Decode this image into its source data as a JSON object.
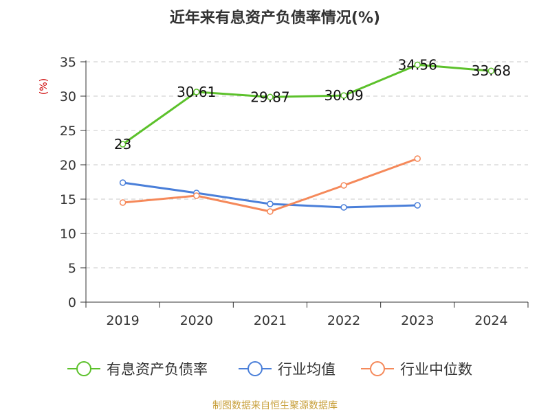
{
  "chart_data": {
    "type": "line",
    "title": "近年来有息资产负债率情况(%)",
    "ylabel": "(%)",
    "xlabel": "",
    "categories": [
      "2019",
      "2020",
      "2021",
      "2022",
      "2023",
      "2024"
    ],
    "ylim": [
      0,
      35
    ],
    "yticks": [
      0,
      5,
      10,
      15,
      20,
      25,
      30,
      35
    ],
    "grid": "horizontal-dashed",
    "legend_position": "bottom",
    "series": [
      {
        "name": "有息资产负债率",
        "color": "#5cc12b",
        "values": [
          23,
          30.61,
          29.87,
          30.09,
          34.56,
          33.68
        ],
        "labels": [
          "23",
          "30.61",
          "29.87",
          "30.09",
          "34.56",
          "33.68"
        ]
      },
      {
        "name": "行业均值",
        "color": "#4a7fd9",
        "values": [
          17.4,
          15.9,
          14.3,
          13.8,
          14.1,
          null
        ]
      },
      {
        "name": "行业中位数",
        "color": "#f5895a",
        "values": [
          14.5,
          15.5,
          13.2,
          17.0,
          20.9,
          null
        ]
      }
    ]
  },
  "source": "制图数据来自恒生聚源数据库"
}
